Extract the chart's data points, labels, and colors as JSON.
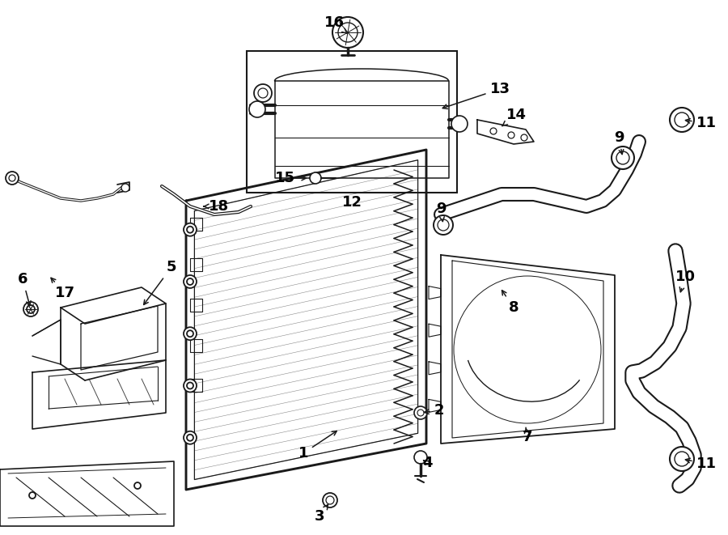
{
  "background_color": "#ffffff",
  "line_color": "#1a1a1a",
  "text_color": "#000000",
  "lw": 1.4,
  "fs": 13,
  "fw": 9.0,
  "fh": 6.61,
  "dpi": 100
}
